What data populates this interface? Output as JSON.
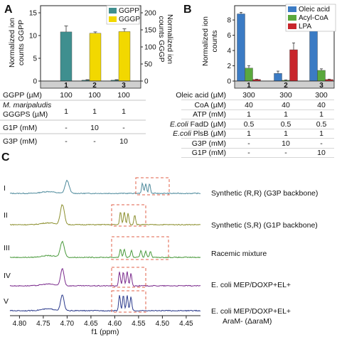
{
  "panelA": {
    "label": "A",
    "y_left_label": "Normalized ion counts GGPP",
    "y_right_label": "Normalized ion counts GGGP",
    "legend": [
      "GGPP",
      "GGGP"
    ],
    "lanes": [
      "1",
      "2",
      "3"
    ],
    "left_ticks": [
      "0",
      "5",
      "10",
      "15"
    ],
    "right_ticks": [
      "0",
      "50",
      "100",
      "150",
      "200"
    ],
    "conditions": [
      {
        "label": "GGPP (µM)",
        "values": [
          "100",
          "100",
          "100"
        ],
        "italic": false
      },
      {
        "label": "M. maripaludis",
        "values": [
          "",
          "",
          ""
        ],
        "italic": true
      },
      {
        "label": "GGGPS (µM)",
        "values": [
          "1",
          "1",
          "1"
        ],
        "italic": false
      },
      {
        "label": "G1P (mM)",
        "values": [
          "-",
          "10",
          "-"
        ],
        "italic": false
      },
      {
        "label": "G3P (mM)",
        "values": [
          "-",
          "-",
          "10"
        ],
        "italic": false
      }
    ]
  },
  "panelB": {
    "label": "B",
    "y_label": "Normalized ion counts",
    "legend": [
      "Oleic acid",
      "Acyl-CoA",
      "LPA"
    ],
    "lanes": [
      "1",
      "2",
      "3"
    ],
    "ticks": [
      "0",
      "2",
      "4",
      "6",
      "8"
    ],
    "conditions": [
      {
        "label": "Oleic acid (µM)",
        "values": [
          "300",
          "300",
          "300"
        ],
        "italic": false
      },
      {
        "label": "CoA (µM)",
        "values": [
          "40",
          "40",
          "40"
        ],
        "italic": false
      },
      {
        "label": "ATP (mM)",
        "values": [
          "1",
          "1",
          "1"
        ],
        "italic": false
      },
      {
        "label": "E.coli FadD (µM)",
        "values": [
          "0.5",
          "0.5",
          "0.5"
        ],
        "italic": true
      },
      {
        "label": "E.coli PlsB (µM)",
        "values": [
          "1",
          "1",
          "1"
        ],
        "italic": true
      },
      {
        "label": "G3P (mM)",
        "values": [
          "-",
          "10",
          "-"
        ],
        "italic": false
      },
      {
        "label": "G1P (mM)",
        "values": [
          "-",
          "-",
          "10"
        ],
        "italic": false
      }
    ]
  },
  "panelC": {
    "label": "C",
    "xlabel": "f1 (ppm)",
    "x_ticks": [
      "4.80",
      "4.75",
      "4.70",
      "4.65",
      "4.60",
      "4.55",
      "4.50",
      "4.45"
    ],
    "traces": [
      {
        "roman": "I",
        "description": "Synthetic (R,R) (G3P backbone)",
        "color": "#4e8a9c"
      },
      {
        "roman": "II",
        "description": "Synthetic (S,R) (G1P backbone)",
        "color": "#8c8f2e"
      },
      {
        "roman": "III",
        "description": "Racemic mixture",
        "color": "#4a9a3c"
      },
      {
        "roman": "IV",
        "description": "E. coli MEP/DOXP+EL+",
        "color": "#7a2a8c"
      },
      {
        "roman": "V",
        "description": "E. coli MEP/DOXP+EL+",
        "description2": "AraM- (ΔaraM)",
        "color": "#2b3a8c"
      }
    ]
  },
  "colors": {
    "ggpp": "#3f8f8f",
    "gggp": "#f2d800",
    "oleic": "#3b7bc4",
    "acylcoa": "#5aa83c",
    "lpa": "#c8262c",
    "box": "#e0604a"
  },
  "chart_data": [
    {
      "type": "bar",
      "panel": "A",
      "categories": [
        "1",
        "2",
        "3"
      ],
      "series": [
        {
          "name": "GGPP",
          "axis": "left",
          "values": [
            10.8,
            0.2,
            0.2
          ],
          "errors": [
            1.3,
            0.1,
            0.1
          ]
        },
        {
          "name": "GGGP",
          "axis": "right",
          "values": [
            0,
            140,
            145
          ],
          "errors": [
            0,
            4,
            8
          ]
        }
      ],
      "ylim_left": [
        0,
        15
      ],
      "ylim_right": [
        0,
        200
      ]
    },
    {
      "type": "bar",
      "panel": "B",
      "categories": [
        "1",
        "2",
        "3"
      ],
      "series": [
        {
          "name": "Oleic acid",
          "values": [
            8.8,
            1.0,
            6.6
          ],
          "errors": [
            0.2,
            0.3,
            1.1
          ]
        },
        {
          "name": "Acyl-CoA",
          "values": [
            1.7,
            0.1,
            1.4
          ],
          "errors": [
            0.3,
            0.05,
            0.2
          ]
        },
        {
          "name": "LPA",
          "values": [
            0.2,
            4.1,
            0.2
          ],
          "errors": [
            0.05,
            0.9,
            0.05
          ]
        }
      ],
      "ylim": [
        0,
        9.5
      ]
    }
  ]
}
